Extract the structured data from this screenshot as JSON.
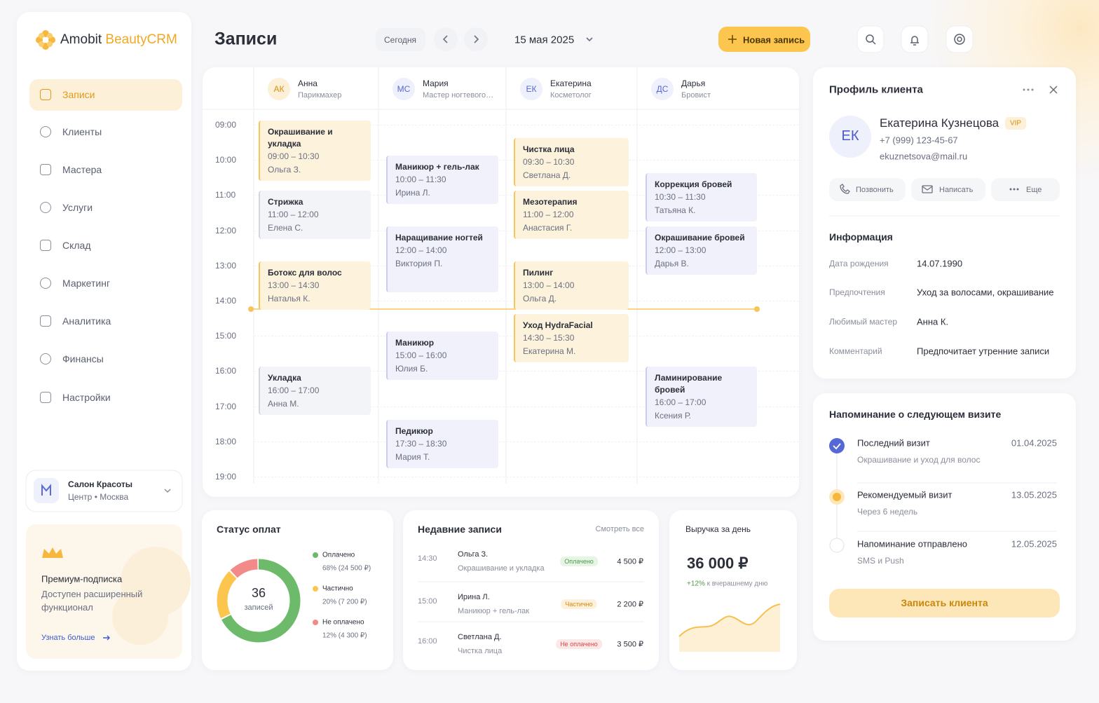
{
  "sidebar": {
    "brand": "Amobit",
    "brand_accent": "BeautyCRM",
    "nav": [
      "Записи",
      "Клиенты",
      "Мастера",
      "Услуги",
      "Склад",
      "Маркетинг",
      "Аналитика",
      "Финансы",
      "Настройки"
    ],
    "salon": {
      "name": "Салон Красоты",
      "location": "Центр",
      "city": "Москва"
    },
    "promo": {
      "title": "Премиум-подписка",
      "text": "Доступен расширенный функционал",
      "link": "Узнать больше"
    }
  },
  "header": {
    "title": "Записи",
    "today": "Сегодня",
    "date": "15 мая 2025",
    "new_button": "Новая запись"
  },
  "calendar": {
    "hours": [
      "09:00",
      "10:00",
      "11:00",
      "12:00",
      "13:00",
      "14:00",
      "15:00",
      "16:00",
      "17:00",
      "18:00",
      "19:00"
    ],
    "masters": [
      {
        "initials": "АК",
        "name": "Анна",
        "role": "Парикмахер",
        "appointments": [
          {
            "service": "Окрашивание и укладка",
            "time": "09:00 – 10:30",
            "client": "Ольга З.",
            "color": "#fdf2dc"
          },
          {
            "service": "Стрижка",
            "time": "11:00 – 12:00",
            "client": "Елена С.",
            "color": "#f3f4f7"
          },
          {
            "service": "Ботокс для волос",
            "time": "13:00 – 14:30",
            "client": "Наталья К.",
            "color": "#fdf2dc"
          },
          {
            "service": "Укладка",
            "time": "16:00 – 17:00",
            "client": "Анна М.",
            "color": "#f3f4f7"
          }
        ]
      },
      {
        "initials": "МС",
        "name": "Мария",
        "role": "Мастер ногтевого…",
        "appointments": [
          {
            "service": "Маникюр + гель-лак",
            "time": "10:00 – 11:30",
            "client": "Ирина Л.",
            "color": "#f0f1fb"
          },
          {
            "service": "Наращивание ногтей",
            "time": "12:00 – 14:00",
            "client": "Виктория П.",
            "color": "#f0f1fb"
          },
          {
            "service": "Маникюр",
            "time": "15:00 – 16:00",
            "client": "Юлия Б.",
            "color": "#f0f1fb"
          },
          {
            "service": "Педикюр",
            "time": "17:30 – 18:30",
            "client": "Мария Т.",
            "color": "#f0f1fb"
          }
        ]
      },
      {
        "initials": "ЕК",
        "name": "Екатерина",
        "role": "Косметолог",
        "appointments": [
          {
            "service": "Чистка лица",
            "time": "09:30 – 10:30",
            "client": "Светлана Д.",
            "color": "#fdf2dc"
          },
          {
            "service": "Мезотерапия",
            "time": "11:00 – 12:00",
            "client": "Анастасия Г.",
            "color": "#fdf2dc"
          },
          {
            "service": "Пилинг",
            "time": "13:00 – 14:00",
            "client": "Ольга Д.",
            "color": "#fdf2dc"
          },
          {
            "service": "Уход HydraFacial",
            "time": "14:30 – 15:30",
            "client": "Екатерина М.",
            "color": "#fdf2dc"
          }
        ]
      },
      {
        "initials": "ДС",
        "name": "Дарья",
        "role": "Бровист",
        "appointments": [
          {
            "service": "Коррекция бровей",
            "time": "10:30 – 11:30",
            "client": "Татьяна К.",
            "color": "#f0f1fb"
          },
          {
            "service": "Окрашивание бровей",
            "time": "12:00 – 13:00",
            "client": "Дарья В.",
            "color": "#f0f1fb"
          },
          {
            "service": "Ламинирование бровей",
            "time": "16:00 – 17:00",
            "client": "Ксения Р.",
            "color": "#f0f1fb"
          }
        ]
      }
    ]
  },
  "payments": {
    "title": "Статус оплат",
    "total": "36",
    "total_label": "записей",
    "items": [
      {
        "name": "Оплачено",
        "value": 68,
        "value_label": "68% (24 500 ₽)",
        "color": "#6dbb6a"
      },
      {
        "name": "Частично",
        "value": 20,
        "value_label": "20% (7 200 ₽)",
        "color": "#fbc54e"
      },
      {
        "name": "Не оплачено",
        "value": 12,
        "value_label": "12% (4 300 ₽)",
        "color": "#f38a8a"
      }
    ]
  },
  "recent": {
    "title": "Недавние записи",
    "view_all": "Смотреть все",
    "rows": [
      {
        "time": "14:30",
        "client": "Ольга З.",
        "service": "Окрашивание и укладка",
        "status": "Оплачено",
        "amount": "4 500 ₽"
      },
      {
        "time": "15:00",
        "client": "Ирина Л.",
        "service": "Маникюр + гель-лак",
        "status": "Частично",
        "amount": "2 200 ₽"
      },
      {
        "time": "16:00",
        "client": "Светлана Д.",
        "service": "Чистка лица",
        "status": "Не оплачено",
        "amount": "3 500 ₽"
      }
    ]
  },
  "revenue": {
    "title": "Выручка за день",
    "amount": "36 000 ₽",
    "change": "+12%",
    "change_text": "к вчерашнему дню"
  },
  "profile": {
    "title": "Профиль клиента",
    "initials": "ЕК",
    "name": "Екатерина Кузнецова",
    "badge": "VIP",
    "phone": "+7 (999) 123-45-67",
    "email": "ekuznetsova@mail.ru",
    "actions": [
      "Позвонить",
      "Написать",
      "Еще"
    ],
    "info_title": "Информация",
    "info": [
      {
        "label": "Дата рождения",
        "value": "14.07.1990"
      },
      {
        "label": "Предпочтения",
        "value": "Уход за волосами, окрашивание"
      },
      {
        "label": "Любимый мастер",
        "value": "Анна К."
      },
      {
        "label": "Комментарий",
        "value": "Предпочитает утренние записи"
      }
    ]
  },
  "reminder": {
    "title": "Напоминание о следующем визите",
    "steps": [
      {
        "title": "Последний визит",
        "date": "01.04.2025",
        "sub": "Окрашивание и уход для волос"
      },
      {
        "title": "Рекомендуемый визит",
        "date": "13.05.2025",
        "sub": "Через 6 недель"
      },
      {
        "title": "Напоминание отправлено",
        "date": "12.05.2025",
        "sub": "SMS и Push"
      }
    ],
    "button": "Записать клиента"
  }
}
